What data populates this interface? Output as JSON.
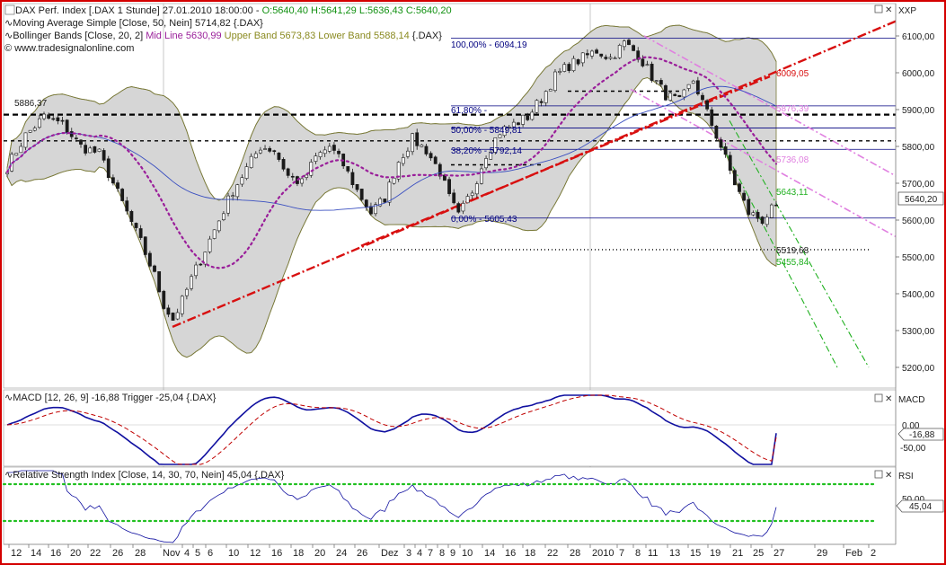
{
  "main": {
    "title_prefix": "DAX Perf. Index [.DAX  1 Stunde] 27.01.2010 18:00:00 - ",
    "ohlc_text": "O:5640,40 H:5641,29 L:5636,43 C:5640,20",
    "ma_text": "Moving Average Simple [Close, 50, Nein] 5714,82 {.DAX}",
    "bb_label": "Bollinger Bands [Close, 20, 2] ",
    "bb_mid": "Mid Line 5630,99",
    "bb_upper": "Upper Band 5673,83",
    "bb_lower": "Lower Band 5588,14",
    "bb_suffix": " {.DAX}",
    "source": "© www.tradesignalonline.com",
    "axis_label": "XXP",
    "last_price": "5640,20",
    "price_ticks": [
      "6100,00",
      "6000,00",
      "5900,00",
      "5800,00",
      "5700,00",
      "5600,00",
      "5500,00",
      "5400,00",
      "5300,00",
      "5200,00"
    ],
    "annotations": {
      "left_level": "5886,37",
      "left_level2": "58__",
      "fib100": "100,00% - 6094,19",
      "fib618": "61,80% - ",
      "fib50": "50,00% - 5849,81",
      "fib382": "38,20% - 5792,14",
      "fib0": "0,00% - 5605,43",
      "red_trend": "6009,05",
      "pink1": "5876,39",
      "pink2": "5736,08",
      "green1": "5643,11",
      "black_level": "5519,68",
      "green2": "5455,84"
    }
  },
  "macd": {
    "label": "MACD [12, 26, 9] -16,88 Trigger -25,04 {.DAX}",
    "axis_label": "MACD",
    "ticks": [
      "0,00",
      "-50,00"
    ],
    "value_box": "-16,88",
    "value_box2": "-25,04"
  },
  "rsi": {
    "label": "Relative Strength Index [Close, 14, 30, 70, Nein] 45,04 {.DAX}",
    "axis_label": "RSI",
    "ticks": [
      "50,00"
    ],
    "value_box": "45,04"
  },
  "xaxis": {
    "labels": [
      "12",
      "14",
      "16",
      "20",
      "22",
      "26",
      "28",
      "Nov",
      "4",
      "5",
      "6",
      "10",
      "12",
      "16",
      "18",
      "20",
      "24",
      "26",
      "Dez",
      "3",
      "4",
      "7",
      "8",
      "9",
      "10",
      "14",
      "16",
      "18",
      "22",
      "28",
      "2010",
      "7",
      "8",
      "11",
      "13",
      "15",
      "19",
      "21",
      "25",
      "27",
      "27",
      "29",
      "Feb",
      "2"
    ]
  },
  "colors": {
    "frame": "#d40000",
    "candles": "#1a1a1a",
    "bollinger_fill": "#d0d0d0",
    "bollinger_band": "#7a7a3a",
    "ma": "#3a4fc0",
    "bb_mid": "#9a1f9a",
    "trend_red": "#d81010",
    "fib": "#000080",
    "pink": "#e080e0",
    "green": "#20b020",
    "macd_line": "#1010a0",
    "macd_trigger": "#c00000",
    "rsi_line": "#1010a0",
    "rsi_bands": "#20c020"
  },
  "chart_data": [
    {
      "type": "candlestick",
      "title": "DAX Perf. Index [.DAX  1 Stunde] 27.01.2010 18:00:00",
      "ylim": [
        5150,
        6150
      ],
      "y_ticks": [
        5200,
        5300,
        5400,
        5500,
        5600,
        5700,
        5800,
        5900,
        6000,
        6100
      ],
      "close_path_approx": [
        [
          0,
          5745
        ],
        [
          4,
          5830
        ],
        [
          8,
          5880
        ],
        [
          12,
          5860
        ],
        [
          16,
          5800
        ],
        [
          20,
          5780
        ],
        [
          23,
          5700
        ],
        [
          26,
          5620
        ],
        [
          29,
          5540
        ],
        [
          32,
          5450
        ],
        [
          34,
          5370
        ],
        [
          36,
          5330
        ],
        [
          38,
          5380
        ],
        [
          40,
          5440
        ],
        [
          43,
          5520
        ],
        [
          46,
          5600
        ],
        [
          49,
          5680
        ],
        [
          52,
          5740
        ],
        [
          55,
          5800
        ],
        [
          58,
          5790
        ],
        [
          61,
          5720
        ],
        [
          64,
          5700
        ],
        [
          67,
          5770
        ],
        [
          70,
          5800
        ],
        [
          73,
          5750
        ],
        [
          76,
          5680
        ],
        [
          79,
          5620
        ],
        [
          82,
          5660
        ],
        [
          85,
          5760
        ],
        [
          88,
          5820
        ],
        [
          91,
          5790
        ],
        [
          94,
          5730
        ],
        [
          96,
          5660
        ],
        [
          98,
          5610
        ],
        [
          101,
          5680
        ],
        [
          104,
          5780
        ],
        [
          107,
          5840
        ],
        [
          110,
          5860
        ],
        [
          113,
          5880
        ],
        [
          116,
          5930
        ],
        [
          119,
          5990
        ],
        [
          122,
          6020
        ],
        [
          125,
          6040
        ],
        [
          128,
          6060
        ],
        [
          131,
          6040
        ],
        [
          134,
          6080
        ],
        [
          137,
          6050
        ],
        [
          140,
          5990
        ],
        [
          143,
          5940
        ],
        [
          146,
          5920
        ],
        [
          149,
          5980
        ],
        [
          152,
          5890
        ],
        [
          155,
          5800
        ],
        [
          158,
          5700
        ],
        [
          161,
          5620
        ],
        [
          164,
          5600
        ],
        [
          167,
          5640
        ]
      ],
      "last": 5640.2,
      "open": 5640.4,
      "high": 5641.29,
      "low": 5636.43,
      "ma50_last": 5714.82,
      "bollinger": {
        "mid": 5630.99,
        "upper": 5673.83,
        "lower": 5588.14
      },
      "fibonacci": [
        {
          "level": "100,00%",
          "value": 6094.19
        },
        {
          "level": "61,80%",
          "value": 5910
        },
        {
          "level": "50,00%",
          "value": 5849.81
        },
        {
          "level": "38,20%",
          "value": 5792.14
        },
        {
          "level": "0,00%",
          "value": 5605.43
        }
      ],
      "horizontal_levels": [
        5886.37,
        5815,
        5519.68
      ],
      "trend_lines": [
        {
          "name": "red",
          "value": 6009.05
        },
        {
          "name": "pink-upper",
          "value": 5876.39
        },
        {
          "name": "pink-lower",
          "value": 5736.08
        },
        {
          "name": "green-upper",
          "value": 5643.11
        },
        {
          "name": "green-lower",
          "value": 5455.84
        }
      ]
    },
    {
      "type": "line",
      "title": "MACD [12, 26, 9]",
      "series": [
        {
          "name": "MACD",
          "last": -16.88
        },
        {
          "name": "Trigger",
          "last": -25.04
        }
      ],
      "y_ticks": [
        0,
        -50
      ]
    },
    {
      "type": "line",
      "title": "Relative Strength Index [Close, 14, 30, 70, Nein]",
      "series": [
        {
          "name": "RSI",
          "last": 45.04
        }
      ],
      "bands": [
        30,
        70
      ],
      "y_ticks": [
        50
      ]
    }
  ]
}
